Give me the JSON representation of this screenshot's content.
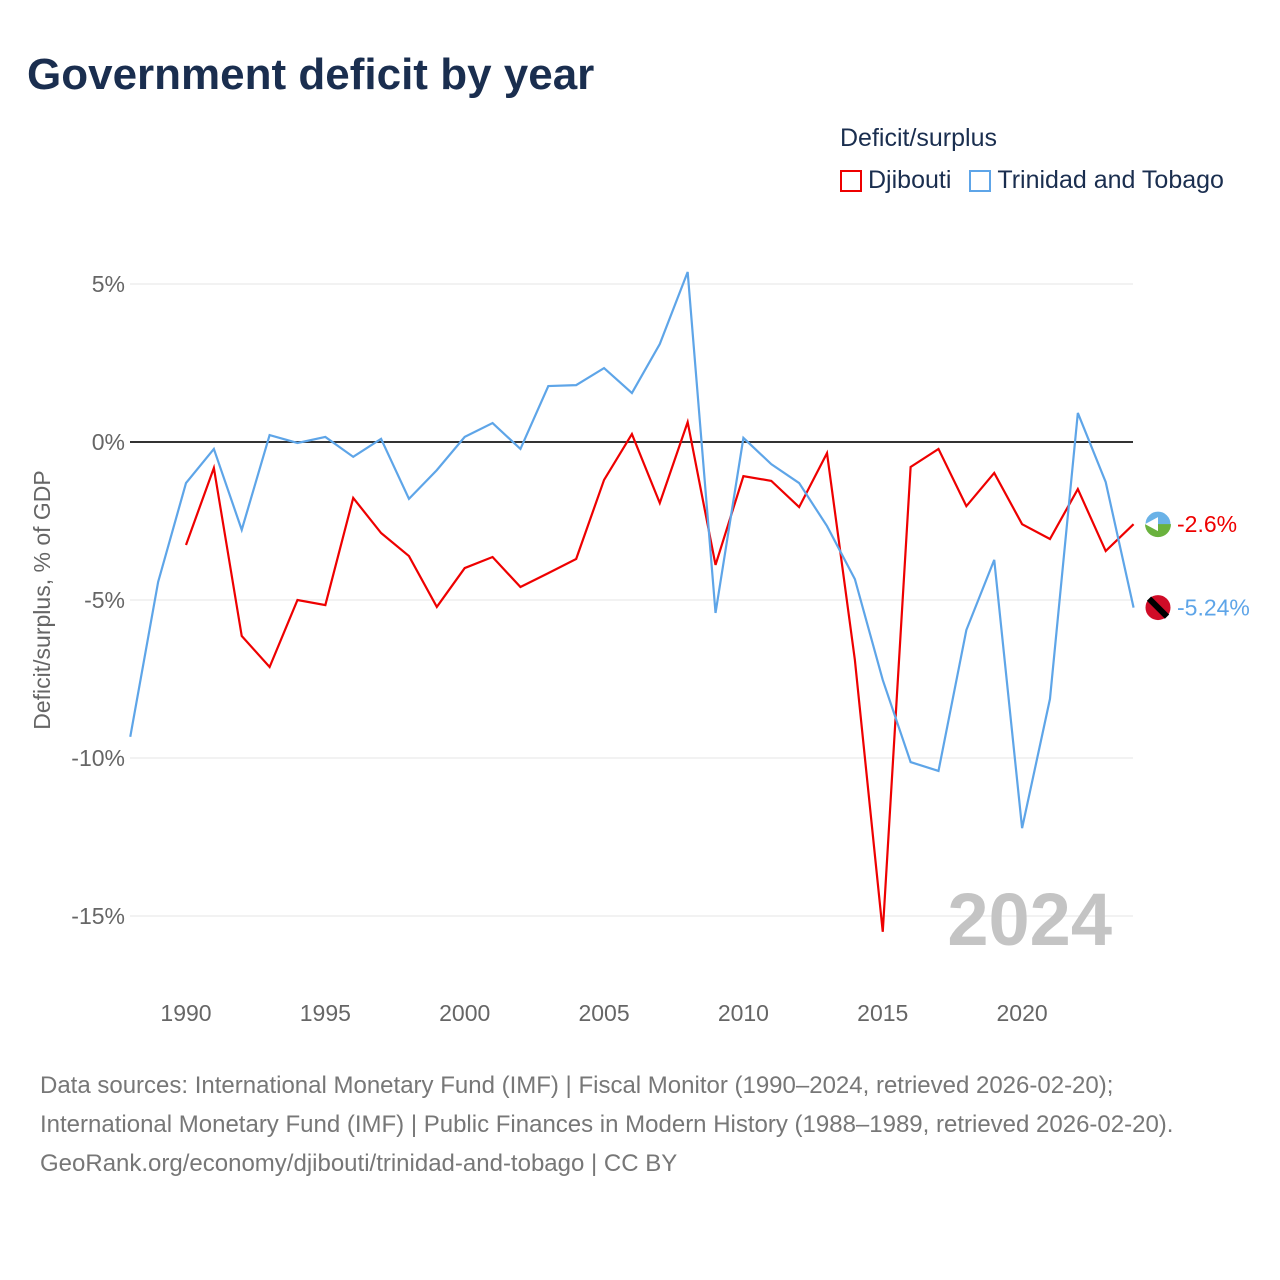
{
  "title": "Government deficit by year",
  "legend": {
    "title": "Deficit/surplus",
    "items": [
      {
        "label": "Djibouti",
        "color": "#ee0000"
      },
      {
        "label": "Trinidad and Tobago",
        "color": "#5ea5e8"
      }
    ]
  },
  "footer": {
    "sources": "Data sources: International Monetary Fund (IMF) | Fiscal Monitor (1990–2024, retrieved 2026-02-20); International Monetary Fund (IMF) | Public Finances in Modern History (1988–1989, retrieved 2026-02-20).",
    "credit": "GeoRank.org/economy/djibouti/trinidad-and-tobago | CC BY"
  },
  "chart_data": {
    "type": "line",
    "title": "Government deficit by year",
    "ylabel": "Deficit/surplus, % of GDP",
    "xlabel": "",
    "year_watermark": "2024",
    "xlim": [
      1988,
      2024
    ],
    "ylim": [
      -17,
      6
    ],
    "x_ticks": [
      1990,
      1995,
      2000,
      2005,
      2010,
      2015,
      2020
    ],
    "y_ticks": [
      {
        "v": 5,
        "label": "5%"
      },
      {
        "v": 0,
        "label": "0%"
      },
      {
        "v": -5,
        "label": "-5%"
      },
      {
        "v": -10,
        "label": "-10%"
      },
      {
        "v": -15,
        "label": "-15%"
      }
    ],
    "series": [
      {
        "name": "Djibouti",
        "color": "#ee0000",
        "end_label": "-2.6%",
        "start": 1990,
        "values": [
          -3.26,
          -0.82,
          -6.14,
          -7.12,
          -5.0,
          -5.16,
          -1.77,
          -2.88,
          -3.61,
          -5.22,
          -3.99,
          -3.64,
          -4.59,
          -4.15,
          -3.7,
          -1.2,
          0.25,
          -1.93,
          0.63,
          -3.89,
          -1.08,
          -1.23,
          -2.06,
          -0.35,
          -6.9,
          -15.5,
          -0.79,
          -0.22,
          -2.03,
          -0.98,
          -2.6,
          -3.07,
          -1.49,
          -3.45,
          -2.6
        ]
      },
      {
        "name": "Trinidad and Tobago",
        "color": "#5ea5e8",
        "end_label": "-5.24%",
        "start": 1988,
        "values": [
          -9.33,
          -4.43,
          -1.3,
          -0.22,
          -2.78,
          0.22,
          -0.03,
          0.16,
          -0.47,
          0.1,
          -1.8,
          -0.89,
          0.16,
          0.6,
          -0.22,
          1.77,
          1.8,
          2.34,
          1.55,
          3.1,
          5.38,
          -5.41,
          0.13,
          -0.7,
          -1.3,
          -2.66,
          -4.34,
          -7.53,
          -10.13,
          -10.41,
          -5.95,
          -3.73,
          -12.22,
          -8.13,
          0.92,
          -1.27,
          -5.24
        ]
      }
    ]
  }
}
